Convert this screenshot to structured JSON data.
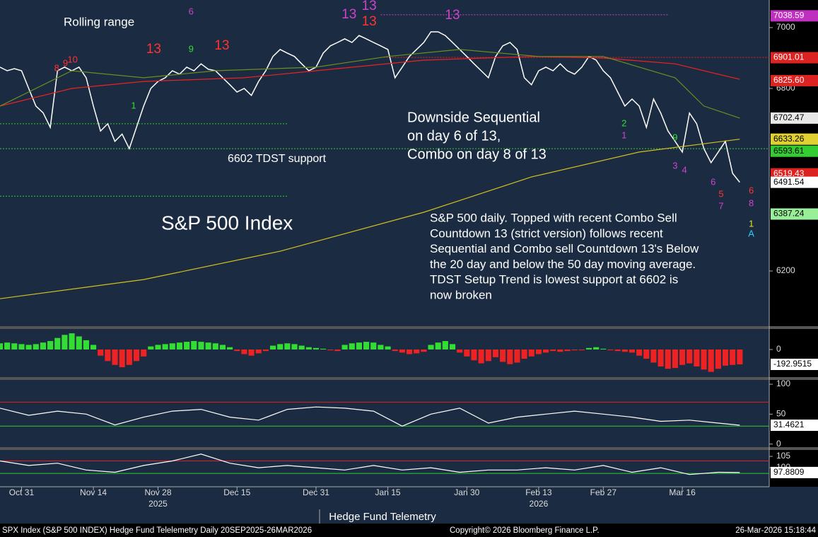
{
  "chart_data": [
    {
      "type": "line",
      "title": "S&P 500 Index",
      "annotations": [
        "Rolling range",
        "6602 TDST support"
      ],
      "callout": [
        "Downside Sequential",
        "on day 6 of 13,",
        "Combo on day 8 of 13"
      ],
      "commentary": [
        "S&P 500 daily. Topped with recent Combo Sell",
        "Countdown 13 (strict version) follows recent",
        "Sequential and Combo sell Countdown 13's  Below",
        "the 20 day and below the 50 day moving average.",
        "TDST Setup Trend is lowest support at 6602 is",
        "now broken"
      ],
      "xlim": [
        -3,
        104.1
      ],
      "ylim": [
        6021,
        7079
      ],
      "xticks": [
        {
          "value": 0,
          "label": "Oct 31"
        },
        {
          "value": 10,
          "label": "Nov 14"
        },
        {
          "value": 19,
          "label": "Nov 28"
        },
        {
          "value": 30,
          "label": "Dec 15"
        },
        {
          "value": 41,
          "label": "Dec 31"
        },
        {
          "value": 51,
          "label": "Jan 15"
        },
        {
          "value": 62,
          "label": "Jan 30"
        },
        {
          "value": 72,
          "label": "Feb 13"
        },
        {
          "value": 81,
          "label": "Feb 27"
        },
        {
          "value": 92,
          "label": "Mar 16"
        }
      ],
      "year_labels": [
        {
          "value": 19,
          "label": "2025"
        },
        {
          "value": 72,
          "label": "2026"
        }
      ],
      "yticks": [
        6200,
        6800,
        7000
      ],
      "series": [
        {
          "color": "#ffffff",
          "x": [
            -3,
            -2,
            -1,
            0,
            1,
            2,
            3,
            4,
            5,
            6,
            7,
            8,
            9,
            10,
            11,
            12,
            13,
            14,
            15,
            16,
            17,
            18,
            19,
            20,
            21,
            22,
            23,
            24,
            25,
            26,
            27,
            28,
            29,
            30,
            31,
            32,
            33,
            34,
            35,
            36,
            37,
            38,
            39,
            40,
            41,
            42,
            43,
            44,
            45,
            46,
            47,
            48,
            49,
            50,
            51,
            52,
            53,
            54,
            55,
            56,
            57,
            58,
            59,
            60,
            61,
            62,
            63,
            64,
            65,
            66,
            67,
            68,
            69,
            70,
            71,
            72,
            73,
            74,
            75,
            76,
            77,
            78,
            79,
            80,
            81,
            82,
            83,
            84,
            85,
            86,
            87,
            88,
            89,
            90,
            91,
            92,
            93,
            94,
            95,
            96,
            97,
            98,
            99,
            100
          ],
          "values": [
            6870,
            6858,
            6865,
            6858,
            6800,
            6742,
            6720,
            6672,
            6858,
            6870,
            6858,
            6870,
            6835,
            6742,
            6660,
            6684,
            6626,
            6650,
            6602,
            6672,
            6742,
            6800,
            6823,
            6835,
            6858,
            6847,
            6870,
            6858,
            6881,
            6863,
            6858,
            6835,
            6812,
            6788,
            6800,
            6777,
            6823,
            6858,
            6905,
            6928,
            6916,
            6905,
            6881,
            6858,
            6870,
            6916,
            6940,
            6951,
            6963,
            6951,
            6974,
            6963,
            6951,
            6940,
            6928,
            6835,
            6870,
            6905,
            6928,
            6951,
            6986,
            6986,
            6974,
            6951,
            6928,
            6905,
            6881,
            6858,
            6835,
            6905,
            6940,
            6951,
            6928,
            6835,
            6812,
            6858,
            6870,
            6858,
            6881,
            6858,
            6847,
            6870,
            6905,
            6893,
            6858,
            6835,
            6788,
            6742,
            6765,
            6742,
            6672,
            6765,
            6719,
            6660,
            6626,
            6591,
            6719,
            6684,
            6602,
            6556,
            6591,
            6626,
            6521,
            6491.54
          ]
        },
        {
          "color": "#ee2222",
          "x": [
            -3,
            7,
            17,
            31,
            41,
            56,
            71,
            81,
            91,
            100
          ],
          "values": [
            6742,
            6800,
            6823,
            6835,
            6858,
            6893,
            6905,
            6900,
            6881,
            6830
          ]
        },
        {
          "color": "#6b8e23",
          "x": [
            -3,
            7,
            17,
            27,
            41,
            51,
            61,
            72,
            81,
            91,
            95,
            100
          ],
          "values": [
            6742,
            6858,
            6835,
            6858,
            6870,
            6905,
            6928,
            6905,
            6905,
            6835,
            6742,
            6702.47
          ]
        },
        {
          "color": "#d4c020",
          "x": [
            -3,
            17,
            36,
            56,
            71,
            86,
            100
          ],
          "values": [
            6109,
            6172,
            6265,
            6393,
            6509,
            6591,
            6633.26
          ]
        }
      ],
      "levels": [
        {
          "value": 6684,
          "color": "#33cc33",
          "from": -3,
          "to": 37
        },
        {
          "value": 6602,
          "color": "#33cc33",
          "from": -3,
          "to": 104.1
        },
        {
          "value": 6446,
          "color": "#33cc33",
          "from": -3,
          "to": 37
        },
        {
          "value": 6902,
          "color": "#ee2222",
          "from": 50,
          "to": 104.1
        },
        {
          "value": 7042,
          "color": "#cc44cc",
          "from": 50,
          "to": 90
        }
      ],
      "td_counts": [
        {
          "text": "8",
          "x": 4.9,
          "y": 6865,
          "color": "#ff3333"
        },
        {
          "text": "9",
          "x": 6.1,
          "y": 6881,
          "color": "#ff3333"
        },
        {
          "text": "10",
          "x": 7.1,
          "y": 6893,
          "color": "#ff3333"
        },
        {
          "text": "1",
          "x": 15.6,
          "y": 6742,
          "color": "#33dd33"
        },
        {
          "text": "13",
          "x": 18.4,
          "y": 6928,
          "color": "#ff3333"
        },
        {
          "text": "9",
          "x": 23.6,
          "y": 6928,
          "color": "#33dd33"
        },
        {
          "text": "6",
          "x": 23.6,
          "y": 7051,
          "color": "#cc44cc"
        },
        {
          "text": "13",
          "x": 27.9,
          "y": 6940,
          "color": "#ff3333"
        },
        {
          "text": "13",
          "x": 45.6,
          "y": 7042,
          "color": "#cc44cc"
        },
        {
          "text": "13",
          "x": 48.4,
          "y": 7070,
          "color": "#cc44cc"
        },
        {
          "text": "13",
          "x": 48.4,
          "y": 7019,
          "color": "#ff3333"
        },
        {
          "text": "13",
          "x": 60,
          "y": 7040,
          "color": "#cc44cc"
        },
        {
          "text": "2",
          "x": 83.9,
          "y": 6684,
          "color": "#33dd33"
        },
        {
          "text": "1",
          "x": 83.9,
          "y": 6644,
          "color": "#cc44cc"
        },
        {
          "text": "9",
          "x": 91,
          "y": 6637,
          "color": "#33dd33"
        },
        {
          "text": "3",
          "x": 91,
          "y": 6544,
          "color": "#cc44cc"
        },
        {
          "text": "4",
          "x": 92.3,
          "y": 6530,
          "color": "#cc44cc"
        },
        {
          "text": "6",
          "x": 96.3,
          "y": 6491,
          "color": "#cc44cc"
        },
        {
          "text": "5",
          "x": 97.4,
          "y": 6451,
          "color": "#ff3333"
        },
        {
          "text": "7",
          "x": 97.4,
          "y": 6412,
          "color": "#cc44cc"
        },
        {
          "text": "6",
          "x": 101.6,
          "y": 6463,
          "color": "#ff3333"
        },
        {
          "text": "8",
          "x": 101.6,
          "y": 6421,
          "color": "#cc44cc"
        },
        {
          "text": "1",
          "x": 101.6,
          "y": 6353,
          "color": "#e0e020"
        },
        {
          "text": "A",
          "x": 101.6,
          "y": 6321,
          "color": "#33ccee"
        }
      ],
      "price_labels": [
        {
          "value": 7038.59,
          "color": "#c030c0",
          "text_color": "#ffffff"
        },
        {
          "value": 6901.01,
          "color": "#dd2222",
          "text_color": "#ffffff"
        },
        {
          "value": 6825.6,
          "label": "6825.60",
          "color": "#dd2222",
          "text_color": "#ffffff"
        },
        {
          "value": 6702.47,
          "color": "#e8e8e8",
          "text_color": "#000000"
        },
        {
          "value": 6633.26,
          "color": "#e0d030",
          "text_color": "#000000"
        },
        {
          "value": 6593.61,
          "color": "#33cc33",
          "text_color": "#000000"
        },
        {
          "value": 6519.43,
          "color": "#dd2222",
          "text_color": "#ffffff"
        },
        {
          "value": 6491.54,
          "color": "#ffffff",
          "text_color": "#000000"
        },
        {
          "value": 6387.24,
          "color": "#99ee99",
          "text_color": "#000000"
        }
      ]
    },
    {
      "type": "histogram-bar",
      "xlim": [
        -3,
        104.1
      ],
      "ylim": [
        -349,
        257
      ],
      "yticks": [
        0
      ],
      "colors": {
        "positive": "#33dd33",
        "negative": "#ee2222"
      },
      "x": [
        -3,
        -2,
        -1,
        0,
        1,
        2,
        3,
        4,
        5,
        6,
        7,
        8,
        9,
        10,
        11,
        12,
        13,
        14,
        15,
        16,
        17,
        18,
        19,
        20,
        21,
        22,
        23,
        24,
        25,
        26,
        27,
        28,
        29,
        30,
        31,
        32,
        33,
        34,
        35,
        36,
        37,
        38,
        39,
        40,
        41,
        42,
        43,
        44,
        45,
        46,
        47,
        48,
        49,
        50,
        51,
        52,
        53,
        54,
        55,
        56,
        57,
        58,
        59,
        60,
        61,
        62,
        63,
        64,
        65,
        66,
        67,
        68,
        69,
        70,
        71,
        72,
        73,
        74,
        75,
        76,
        77,
        78,
        79,
        80,
        81,
        82,
        83,
        84,
        85,
        86,
        87,
        88,
        89,
        90,
        91,
        92,
        93,
        94,
        95,
        96,
        97,
        98,
        99,
        100
      ],
      "values": [
        80,
        90,
        80,
        70,
        60,
        70,
        90,
        110,
        150,
        190,
        210,
        170,
        120,
        60,
        -80,
        -150,
        -200,
        -230,
        -200,
        -150,
        -90,
        40,
        60,
        70,
        80,
        90,
        100,
        110,
        100,
        90,
        80,
        60,
        30,
        -20,
        -60,
        -80,
        -50,
        -20,
        50,
        70,
        80,
        70,
        50,
        30,
        20,
        10,
        -10,
        -20,
        60,
        80,
        90,
        100,
        90,
        60,
        40,
        -20,
        -40,
        -60,
        -50,
        -30,
        60,
        90,
        110,
        70,
        -40,
        -90,
        -140,
        -180,
        -150,
        -100,
        -160,
        -190,
        -170,
        -120,
        -90,
        -60,
        -40,
        -20,
        -30,
        -20,
        -10,
        -10,
        20,
        30,
        10,
        -10,
        -20,
        -30,
        -40,
        -80,
        -120,
        -170,
        -220,
        -250,
        -240,
        -200,
        -180,
        -220,
        -260,
        -290,
        -250,
        -210,
        -200,
        -192.9515
      ],
      "last_label": {
        "value": -192.9515
      }
    },
    {
      "type": "line",
      "xlim": [
        -3,
        104.1
      ],
      "ylim": [
        -4,
        106
      ],
      "yticks": [
        0,
        50,
        100
      ],
      "bands": [
        {
          "value": 70,
          "color": "#dd2222"
        },
        {
          "value": 30,
          "color": "#33cc33"
        }
      ],
      "series": [
        {
          "color": "#ffffff",
          "x": [
            -3,
            1,
            5,
            9,
            13,
            17,
            21,
            25,
            29,
            33,
            37,
            41,
            45,
            49,
            53,
            57,
            61,
            65,
            69,
            73,
            77,
            81,
            85,
            89,
            93,
            97,
            100
          ],
          "values": [
            60,
            48,
            55,
            50,
            32,
            45,
            55,
            58,
            45,
            40,
            58,
            62,
            60,
            55,
            30,
            50,
            60,
            35,
            45,
            50,
            55,
            50,
            45,
            38,
            40,
            35,
            31.4621
          ]
        }
      ],
      "last_label": {
        "value": 31.4621
      }
    },
    {
      "type": "line",
      "xlim": [
        -3,
        104.1
      ],
      "ylim": [
        91.6,
        107.2
      ],
      "yticks": [
        100,
        105
      ],
      "bands": [
        {
          "value": 103,
          "color": "#dd2222"
        },
        {
          "value": 97.5,
          "color": "#33cc33"
        }
      ],
      "series": [
        {
          "color": "#ffffff",
          "x": [
            -3,
            1,
            5,
            9,
            13,
            17,
            21,
            25,
            29,
            33,
            37,
            41,
            45,
            49,
            53,
            57,
            61,
            65,
            69,
            73,
            77,
            81,
            85,
            89,
            93,
            97,
            100
          ],
          "values": [
            103,
            101,
            102,
            99,
            98,
            101,
            103,
            106,
            102,
            100,
            101,
            100,
            99,
            101,
            99,
            100,
            98,
            99,
            99,
            100,
            99,
            101,
            98,
            100,
            97,
            98,
            97.8809
          ]
        }
      ],
      "last_label": {
        "value": 97.8809
      }
    }
  ],
  "source": "Hedge Fund Telemetry",
  "footer": {
    "left": "SPX Index (S&P 500 INDEX) Hedge Fund Telelemetry Daily 20SEP2025-26MAR2026",
    "center": "Copyright© 2026 Bloomberg Finance L.P.",
    "right": "26-Mar-2026 15:18:44"
  }
}
